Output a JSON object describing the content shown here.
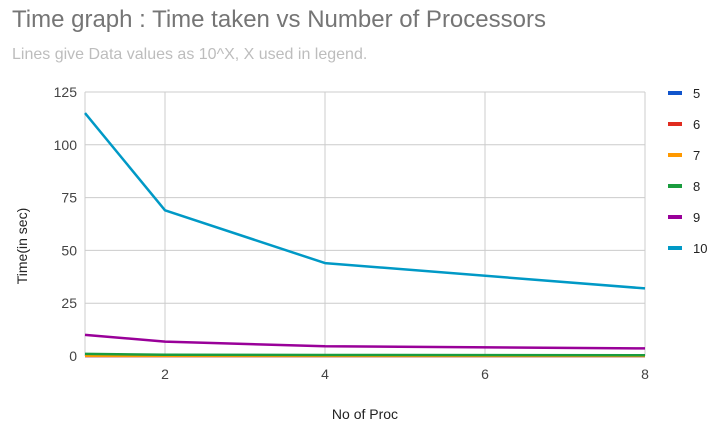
{
  "chart_data": {
    "type": "line",
    "title": "Time graph : Time taken vs Number of Processors",
    "subtitle": "Lines give Data values as 10^X, X used in legend.",
    "xlabel": "No of Proc",
    "ylabel": "Time(in sec)",
    "x": [
      1,
      2,
      4,
      8
    ],
    "xlim": [
      1,
      8
    ],
    "ylim": [
      0,
      125
    ],
    "x_ticks": [
      "2",
      "4",
      "6",
      "8"
    ],
    "y_ticks": [
      "0",
      "25",
      "50",
      "75",
      "100",
      "125"
    ],
    "grid": true,
    "legend_position": "right",
    "series": [
      {
        "name": "5",
        "color": "#1155cc",
        "values": [
          0.01,
          0.01,
          0.01,
          0.01
        ]
      },
      {
        "name": "6",
        "color": "#e02c20",
        "values": [
          0.02,
          0.02,
          0.02,
          0.02
        ]
      },
      {
        "name": "7",
        "color": "#ff9900",
        "values": [
          0.1,
          0.06,
          0.05,
          0.04
        ]
      },
      {
        "name": "8",
        "color": "#1a9c3e",
        "values": [
          1.0,
          0.6,
          0.45,
          0.4
        ]
      },
      {
        "name": "9",
        "color": "#990099",
        "values": [
          10,
          6.8,
          4.6,
          3.6
        ]
      },
      {
        "name": "10",
        "color": "#0099c6",
        "values": [
          115,
          69,
          44,
          32
        ]
      }
    ]
  }
}
